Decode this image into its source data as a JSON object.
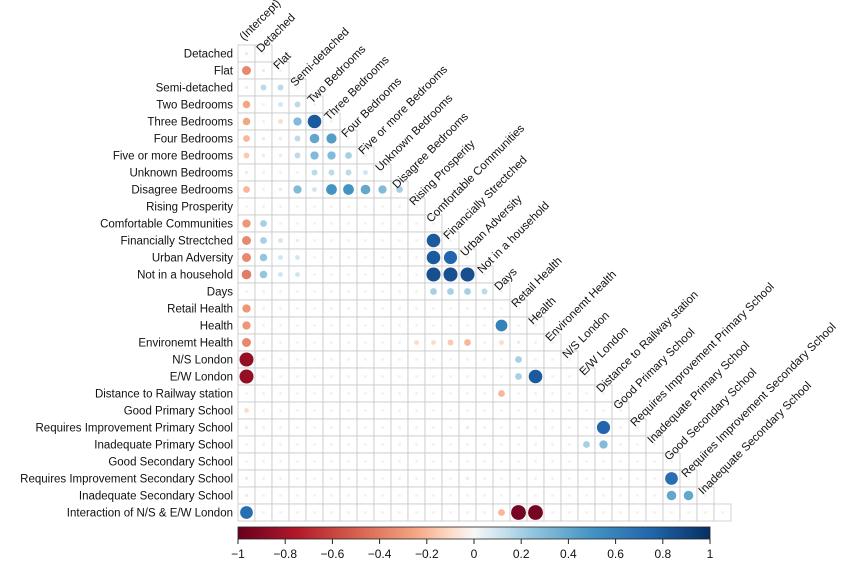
{
  "chart_data": {
    "type": "heatmap",
    "variables": [
      "(Intercept)",
      "Detached",
      "Flat",
      "Semi-detached",
      "Two Bedrooms",
      "Three Bedrooms",
      "Four Bedrooms",
      "Five or more Bedrooms",
      "Unknown Bedrooms",
      "Disagree Bedrooms",
      "Rising Prosperity",
      "Comfortable Communities",
      "Financially Strectched",
      "Urban Adversity",
      "Not in a household",
      "Days",
      "Retail Health",
      "Health",
      "Environemt Health",
      "N/S London",
      "E/W London",
      "Distance to Railway station",
      "Good Primary School",
      "Requires Improvement Primary School",
      "Inadequate Primary School",
      "Good Secondary School",
      "Requires Improvement Secondary School",
      "Inadequate Secondary School",
      "Interaction of N/S & E/W London"
    ],
    "correlations": [
      [
        1,
        0,
        -0.05
      ],
      [
        2,
        0,
        -0.35
      ],
      [
        2,
        1,
        0.05
      ],
      [
        3,
        0,
        -0.05
      ],
      [
        3,
        1,
        0.15
      ],
      [
        3,
        2,
        0.15
      ],
      [
        4,
        0,
        -0.25
      ],
      [
        4,
        2,
        0.1
      ],
      [
        4,
        3,
        0.15
      ],
      [
        5,
        0,
        -0.25
      ],
      [
        5,
        2,
        -0.1
      ],
      [
        5,
        3,
        0.3
      ],
      [
        5,
        4,
        0.8
      ],
      [
        6,
        0,
        -0.2
      ],
      [
        6,
        1,
        0.05
      ],
      [
        6,
        2,
        -0.05
      ],
      [
        6,
        3,
        0.15
      ],
      [
        6,
        4,
        0.4
      ],
      [
        6,
        5,
        0.45
      ],
      [
        7,
        0,
        -0.15
      ],
      [
        7,
        1,
        0.05
      ],
      [
        7,
        2,
        -0.05
      ],
      [
        7,
        3,
        0.15
      ],
      [
        7,
        4,
        0.3
      ],
      [
        7,
        5,
        0.3
      ],
      [
        7,
        6,
        0.2
      ],
      [
        8,
        0,
        -0.05
      ],
      [
        8,
        4,
        0.15
      ],
      [
        8,
        5,
        0.15
      ],
      [
        8,
        6,
        0.15
      ],
      [
        8,
        7,
        0.1
      ],
      [
        9,
        0,
        -0.2
      ],
      [
        9,
        2,
        0.05
      ],
      [
        9,
        3,
        0.3
      ],
      [
        9,
        4,
        0.1
      ],
      [
        9,
        5,
        0.5
      ],
      [
        9,
        6,
        0.5
      ],
      [
        9,
        7,
        0.4
      ],
      [
        9,
        8,
        0.3
      ],
      [
        9,
        9,
        0.2
      ],
      [
        11,
        0,
        -0.3
      ],
      [
        11,
        1,
        0.2
      ],
      [
        12,
        0,
        -0.35
      ],
      [
        12,
        1,
        0.2
      ],
      [
        12,
        2,
        0.1
      ],
      [
        12,
        3,
        0.05
      ],
      [
        12,
        11,
        0.8
      ],
      [
        13,
        0,
        -0.35
      ],
      [
        13,
        1,
        0.25
      ],
      [
        13,
        2,
        0.1
      ],
      [
        13,
        3,
        0.1
      ],
      [
        13,
        11,
        0.8
      ],
      [
        13,
        12,
        0.75
      ],
      [
        14,
        0,
        -0.4
      ],
      [
        14,
        1,
        0.25
      ],
      [
        14,
        2,
        0.1
      ],
      [
        14,
        3,
        0.1
      ],
      [
        14,
        11,
        0.85
      ],
      [
        14,
        12,
        0.85
      ],
      [
        14,
        13,
        0.85
      ],
      [
        15,
        11,
        0.2
      ],
      [
        15,
        12,
        0.2
      ],
      [
        15,
        13,
        0.2
      ],
      [
        15,
        14,
        0.15
      ],
      [
        16,
        0,
        -0.3
      ],
      [
        17,
        0,
        -0.3
      ],
      [
        17,
        15,
        0.6
      ],
      [
        18,
        0,
        -0.35
      ],
      [
        18,
        10,
        -0.1
      ],
      [
        18,
        11,
        -0.1
      ],
      [
        18,
        12,
        -0.15
      ],
      [
        18,
        13,
        -0.2
      ],
      [
        18,
        15,
        -0.1
      ],
      [
        18,
        16,
        -0.05
      ],
      [
        19,
        0,
        -0.85
      ],
      [
        19,
        16,
        0.2
      ],
      [
        20,
        0,
        -0.85
      ],
      [
        20,
        16,
        0.2
      ],
      [
        20,
        17,
        0.8
      ],
      [
        21,
        15,
        -0.2
      ],
      [
        22,
        0,
        -0.1
      ],
      [
        23,
        0,
        -0.05
      ],
      [
        23,
        13,
        -0.05
      ],
      [
        23,
        21,
        0.75
      ],
      [
        24,
        20,
        0.2
      ],
      [
        24,
        21,
        0.3
      ],
      [
        26,
        0,
        -0.05
      ],
      [
        26,
        13,
        -0.05
      ],
      [
        26,
        25,
        0.7
      ],
      [
        27,
        0,
        -0.05
      ],
      [
        27,
        25,
        0.4
      ],
      [
        27,
        26,
        0.4
      ],
      [
        28,
        0,
        0.7
      ],
      [
        28,
        15,
        -0.2
      ],
      [
        28,
        16,
        -0.95
      ],
      [
        28,
        17,
        -0.95
      ]
    ],
    "colorbar": {
      "min": -1,
      "max": 1,
      "ticks": [
        "−1",
        "−0.8",
        "−0.6",
        "−0.4",
        "−0.2",
        "0",
        "0.2",
        "0.4",
        "0.6",
        "0.8",
        "1"
      ]
    },
    "colors": {
      "negative": "#67001f",
      "neutral": "#f7f7f7",
      "positive": "#053061"
    }
  }
}
